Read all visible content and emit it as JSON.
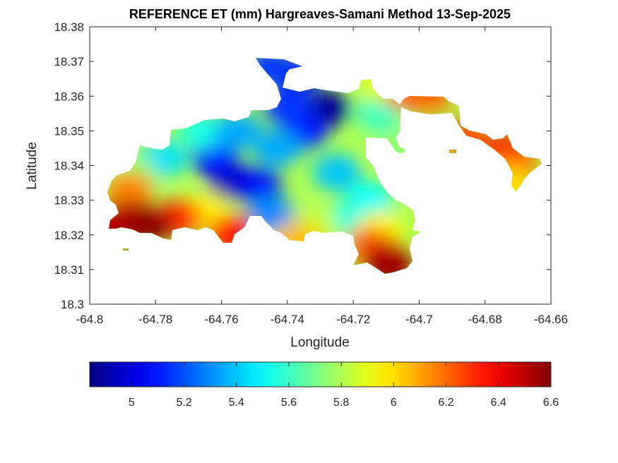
{
  "chart_data": {
    "type": "heatmap",
    "title": "REFERENCE ET (mm) Hargreaves-Samani Method  13-Sep-2025",
    "xlabel": "Longitude",
    "ylabel": "Latitude",
    "xlim": [
      -64.8,
      -64.66
    ],
    "ylim": [
      18.3,
      18.38
    ],
    "xticks": [
      "-64.8",
      "-64.78",
      "-64.76",
      "-64.74",
      "-64.72",
      "-64.7",
      "-64.68",
      "-64.66"
    ],
    "yticks": [
      "18.3",
      "18.31",
      "18.32",
      "18.33",
      "18.34",
      "18.35",
      "18.36",
      "18.37",
      "18.38"
    ],
    "grid": false,
    "colormap": "jet",
    "colorbar": {
      "orientation": "horizontal",
      "placement": "bottom",
      "range": [
        4.84,
        6.6
      ],
      "ticks": [
        "5",
        "5.2",
        "5.4",
        "5.6",
        "5.8",
        "6",
        "6.2",
        "6.4",
        "6.6"
      ]
    },
    "regions": [
      {
        "lon": -64.757,
        "lat": 18.3355,
        "value": 4.9
      },
      {
        "lon": -64.728,
        "lat": 18.3565,
        "value": 4.88
      },
      {
        "lon": -64.749,
        "lat": 18.3345,
        "value": 5.05
      },
      {
        "lon": -64.762,
        "lat": 18.342,
        "value": 5.1
      },
      {
        "lon": -64.735,
        "lat": 18.35,
        "value": 5.1
      },
      {
        "lon": -64.74,
        "lat": 18.357,
        "value": 5.15
      },
      {
        "lon": -64.737,
        "lat": 18.366,
        "value": 5.1
      },
      {
        "lon": -64.745,
        "lat": 18.3685,
        "value": 5.15
      },
      {
        "lon": -64.743,
        "lat": 18.345,
        "value": 5.35
      },
      {
        "lon": -64.725,
        "lat": 18.338,
        "value": 5.4
      },
      {
        "lon": -64.745,
        "lat": 18.326,
        "value": 5.3
      },
      {
        "lon": -64.778,
        "lat": 18.342,
        "value": 5.45
      },
      {
        "lon": -64.766,
        "lat": 18.35,
        "value": 5.55
      },
      {
        "lon": -64.755,
        "lat": 18.35,
        "value": 5.35
      },
      {
        "lon": -64.715,
        "lat": 18.33,
        "value": 5.5
      },
      {
        "lon": -64.72,
        "lat": 18.325,
        "value": 5.55
      },
      {
        "lon": -64.712,
        "lat": 18.355,
        "value": 5.6
      },
      {
        "lon": -64.7105,
        "lat": 18.3635,
        "value": 5.9
      },
      {
        "lon": -64.707,
        "lat": 18.3445,
        "value": 5.75
      },
      {
        "lon": -64.787,
        "lat": 18.338,
        "value": 5.75
      },
      {
        "lon": -64.765,
        "lat": 18.327,
        "value": 5.95
      },
      {
        "lon": -64.732,
        "lat": 18.322,
        "value": 5.85
      },
      {
        "lon": -64.712,
        "lat": 18.3215,
        "value": 5.95
      },
      {
        "lon": -64.788,
        "lat": 18.333,
        "value": 6.15
      },
      {
        "lon": -64.773,
        "lat": 18.325,
        "value": 6.3
      },
      {
        "lon": -64.757,
        "lat": 18.3205,
        "value": 6.35
      },
      {
        "lon": -64.737,
        "lat": 18.3185,
        "value": 6.05
      },
      {
        "lon": -64.715,
        "lat": 18.317,
        "value": 6.2
      },
      {
        "lon": -64.71,
        "lat": 18.3135,
        "value": 6.45
      },
      {
        "lon": -64.709,
        "lat": 18.3105,
        "value": 6.55
      },
      {
        "lon": -64.787,
        "lat": 18.325,
        "value": 6.5
      },
      {
        "lon": -64.782,
        "lat": 18.3225,
        "value": 6.58
      },
      {
        "lon": -64.791,
        "lat": 18.322,
        "value": 6.55
      },
      {
        "lon": -64.797,
        "lat": 18.323,
        "value": 6.5
      },
      {
        "lon": -64.703,
        "lat": 18.361,
        "value": 6.25
      },
      {
        "lon": -64.697,
        "lat": 18.3605,
        "value": 6.2
      },
      {
        "lon": -64.686,
        "lat": 18.348,
        "value": 6.25
      },
      {
        "lon": -64.673,
        "lat": 18.3445,
        "value": 6.35
      },
      {
        "lon": -64.671,
        "lat": 18.3395,
        "value": 6.2
      },
      {
        "lon": -64.673,
        "lat": 18.3345,
        "value": 6.0
      }
    ]
  }
}
